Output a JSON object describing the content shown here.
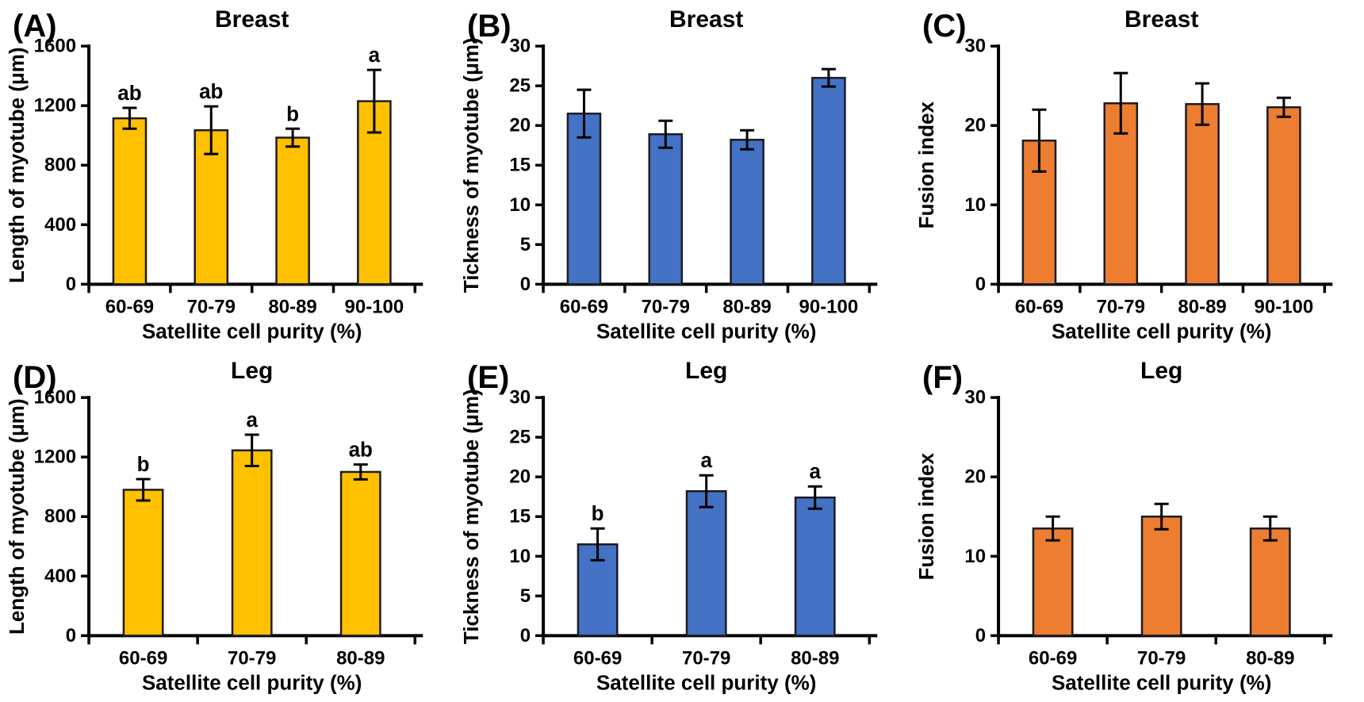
{
  "figure": {
    "background": "#ffffff",
    "text_color": "#000000",
    "axis_color": "#000000",
    "error_bar_color": "#000000",
    "row_titles": [
      "Breast",
      "Leg"
    ],
    "x_axis_title": "Satellite cell purity (%)"
  },
  "chart_data": [
    {
      "type": "bar",
      "panel_label": "(A)",
      "title": "Breast",
      "xlabel": "Satellite cell purity (%)",
      "ylabel": "Length of myotube (μm)",
      "ylim": [
        0,
        1600
      ],
      "yticks": [
        0,
        400,
        800,
        1200,
        1600
      ],
      "categories": [
        "60-69",
        "70-79",
        "80-89",
        "90-100"
      ],
      "values": [
        1115,
        1035,
        985,
        1230
      ],
      "errors": [
        70,
        160,
        60,
        210
      ],
      "sig_letters": [
        "ab",
        "ab",
        "b",
        "a"
      ],
      "bar_color": "#FFC000",
      "bar_stroke": "#1c1c24",
      "grid": false,
      "legend": null
    },
    {
      "type": "bar",
      "panel_label": "(B)",
      "title": "Breast",
      "xlabel": "Satellite cell purity (%)",
      "ylabel": "Tickness of myotube (μm)",
      "ylim": [
        0,
        30
      ],
      "yticks": [
        0,
        5,
        10,
        15,
        20,
        25,
        30
      ],
      "categories": [
        "60-69",
        "70-79",
        "80-89",
        "90-100"
      ],
      "values": [
        21.5,
        18.9,
        18.2,
        26.0
      ],
      "errors": [
        3.0,
        1.7,
        1.2,
        1.1
      ],
      "sig_letters": [
        "",
        "",
        "",
        ""
      ],
      "bar_color": "#4472C4",
      "bar_stroke": "#1c1c24",
      "grid": false,
      "legend": null
    },
    {
      "type": "bar",
      "panel_label": "(C)",
      "title": "Breast",
      "xlabel": "Satellite cell purity (%)",
      "ylabel": "Fusion index",
      "ylim": [
        0,
        30
      ],
      "yticks": [
        0,
        10,
        20,
        30
      ],
      "categories": [
        "60-69",
        "70-79",
        "80-89",
        "90-100"
      ],
      "values": [
        18.1,
        22.8,
        22.7,
        22.3
      ],
      "errors": [
        3.9,
        3.8,
        2.6,
        1.2
      ],
      "sig_letters": [
        "",
        "",
        "",
        ""
      ],
      "bar_color": "#ED7D31",
      "bar_stroke": "#1c1c24",
      "grid": false,
      "legend": null
    },
    {
      "type": "bar",
      "panel_label": "(D)",
      "title": "Leg",
      "xlabel": "Satellite cell purity (%)",
      "ylabel": "Length of myotube (μm)",
      "ylim": [
        0,
        1600
      ],
      "yticks": [
        0,
        400,
        800,
        1200,
        1600
      ],
      "categories": [
        "60-69",
        "70-79",
        "80-89"
      ],
      "values": [
        980,
        1245,
        1100
      ],
      "errors": [
        72,
        105,
        50
      ],
      "sig_letters": [
        "b",
        "a",
        "ab"
      ],
      "bar_color": "#FFC000",
      "bar_stroke": "#1c1c24",
      "grid": false,
      "legend": null
    },
    {
      "type": "bar",
      "panel_label": "(E)",
      "title": "Leg",
      "xlabel": "Satellite cell purity (%)",
      "ylabel": "Tickness of myotube (μm)",
      "ylim": [
        0,
        30
      ],
      "yticks": [
        0,
        5,
        10,
        15,
        20,
        25,
        30
      ],
      "categories": [
        "60-69",
        "70-79",
        "80-89"
      ],
      "values": [
        11.5,
        18.2,
        17.4
      ],
      "errors": [
        2.0,
        2.0,
        1.4
      ],
      "sig_letters": [
        "b",
        "a",
        "a"
      ],
      "bar_color": "#4472C4",
      "bar_stroke": "#1c1c24",
      "grid": false,
      "legend": null
    },
    {
      "type": "bar",
      "panel_label": "(F)",
      "title": "Leg",
      "xlabel": "Satellite cell purity (%)",
      "ylabel": "Fusion index",
      "ylim": [
        0,
        30
      ],
      "yticks": [
        0,
        10,
        20,
        30
      ],
      "categories": [
        "60-69",
        "70-79",
        "80-89"
      ],
      "values": [
        13.5,
        15.0,
        13.5
      ],
      "errors": [
        1.5,
        1.6,
        1.5
      ],
      "sig_letters": [
        "",
        "",
        ""
      ],
      "bar_color": "#ED7D31",
      "bar_stroke": "#1c1c24",
      "grid": false,
      "legend": null
    }
  ]
}
